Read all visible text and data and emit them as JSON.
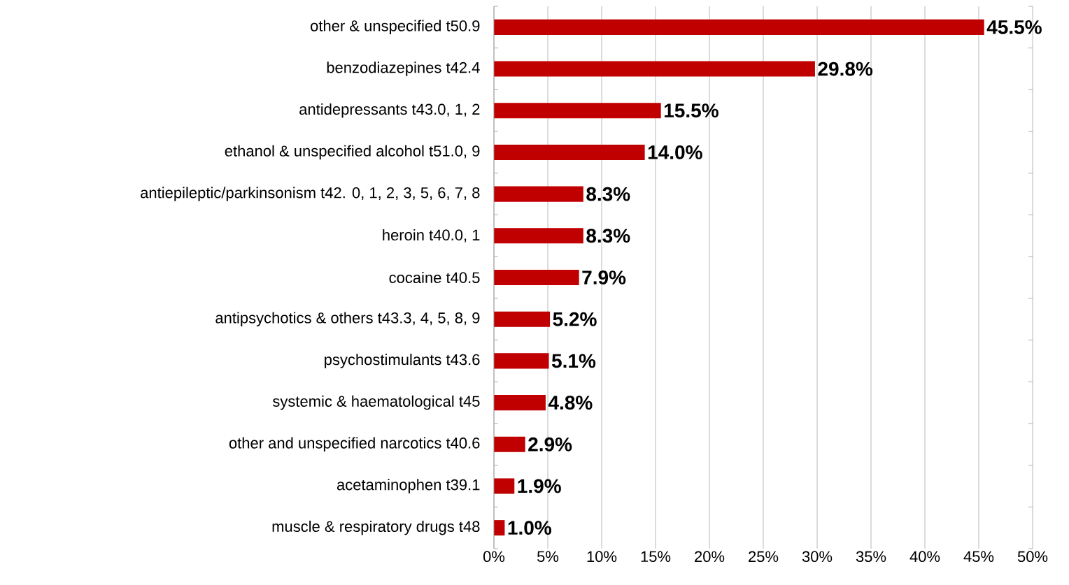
{
  "chart_data": {
    "type": "bar",
    "orientation": "horizontal",
    "categories": [
      "other & unspecified t50.9",
      "benzodiazepines t42.4",
      "antidepressants t43.0, 1, 2",
      "ethanol & unspecified alcohol t51.0, 9",
      "antiepileptic/parkinsonism t42. 0, 1, 2, 3, 5, 6, 7, 8",
      "heroin t40.0, 1",
      "cocaine t40.5",
      "antipsychotics & others  t43.3, 4, 5, 8, 9",
      "psychostimulants t43.6",
      "systemic & haematological t45",
      "other and unspecified narcotics t40.6",
      "acetaminophen t39.1",
      "muscle & respiratory drugs t48"
    ],
    "values": [
      45.5,
      29.8,
      15.5,
      14.0,
      8.3,
      8.3,
      7.9,
      5.2,
      5.1,
      4.8,
      2.9,
      1.9,
      1.0
    ],
    "value_labels": [
      "45.5%",
      "29.8%",
      "15.5%",
      "14.0%",
      "8.3%",
      "8.3%",
      "7.9%",
      "5.2%",
      "5.1%",
      "4.8%",
      "2.9%",
      "1.9%",
      "1.0%"
    ],
    "color": "#c00000",
    "xlim": [
      0,
      50
    ],
    "xticks": [
      {
        "value": 0,
        "label": "0%"
      },
      {
        "value": 5,
        "label": "5%"
      },
      {
        "value": 10,
        "label": "10%"
      },
      {
        "value": 15,
        "label": "15%"
      },
      {
        "value": 20,
        "label": "20%"
      },
      {
        "value": 25,
        "label": "25%"
      },
      {
        "value": 30,
        "label": "30%"
      },
      {
        "value": 35,
        "label": "35%"
      },
      {
        "value": 40,
        "label": "40%"
      },
      {
        "value": 45,
        "label": "45%"
      },
      {
        "value": 50,
        "label": "50%"
      }
    ],
    "grid": "x"
  }
}
